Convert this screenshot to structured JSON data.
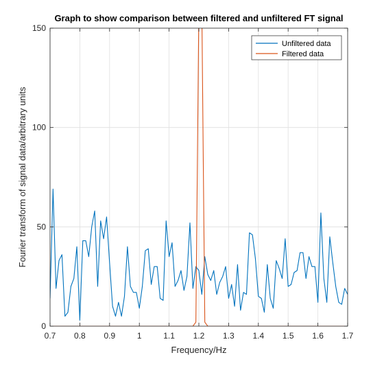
{
  "chart_data": {
    "type": "line",
    "title": "Graph to show comparison between filtered and unfiltered FT signal",
    "xlabel": "Frequency/Hz",
    "ylabel": "Fourier transform of signal data/arbitrary units",
    "xlim": [
      0.7,
      1.7
    ],
    "ylim": [
      0,
      150
    ],
    "xticks": [
      0.7,
      0.8,
      0.9,
      1.0,
      1.1,
      1.2,
      1.3,
      1.4,
      1.5,
      1.6,
      1.7
    ],
    "xtick_labels": [
      "0.7",
      "0.8",
      "0.9",
      "1",
      "1.1",
      "1.2",
      "1.3",
      "1.4",
      "1.5",
      "1.6",
      "1.7"
    ],
    "yticks": [
      0,
      50,
      100,
      150
    ],
    "ytick_labels": [
      "0",
      "50",
      "100",
      "150"
    ],
    "grid": true,
    "legend_position": "top-right",
    "x": [
      0.7,
      0.71,
      0.72,
      0.73,
      0.74,
      0.75,
      0.76,
      0.77,
      0.78,
      0.79,
      0.8,
      0.81,
      0.82,
      0.83,
      0.84,
      0.85,
      0.86,
      0.87,
      0.88,
      0.89,
      0.9,
      0.91,
      0.92,
      0.93,
      0.94,
      0.95,
      0.96,
      0.97,
      0.98,
      0.99,
      1.0,
      1.01,
      1.02,
      1.03,
      1.04,
      1.05,
      1.06,
      1.07,
      1.08,
      1.09,
      1.1,
      1.11,
      1.12,
      1.13,
      1.14,
      1.15,
      1.16,
      1.17,
      1.18,
      1.19,
      1.2,
      1.21,
      1.22,
      1.23,
      1.24,
      1.25,
      1.26,
      1.27,
      1.28,
      1.29,
      1.3,
      1.31,
      1.32,
      1.33,
      1.34,
      1.35,
      1.36,
      1.37,
      1.38,
      1.39,
      1.4,
      1.41,
      1.42,
      1.43,
      1.44,
      1.45,
      1.46,
      1.47,
      1.48,
      1.49,
      1.5,
      1.51,
      1.52,
      1.53,
      1.54,
      1.55,
      1.56,
      1.57,
      1.58,
      1.59,
      1.6,
      1.61,
      1.62,
      1.63,
      1.64,
      1.65,
      1.66,
      1.67,
      1.68,
      1.69,
      1.7
    ],
    "series": [
      {
        "name": "Unfiltered data",
        "color": "#0072BD",
        "values": [
          14,
          69,
          19,
          33,
          36,
          5,
          7,
          20,
          24,
          40,
          3,
          43,
          43,
          35,
          50,
          58,
          20,
          53,
          44,
          55,
          32,
          10,
          5,
          12,
          5,
          15,
          40,
          20,
          17,
          17,
          9,
          20,
          38,
          39,
          21,
          30,
          30,
          14,
          13,
          53,
          35,
          42,
          20,
          23,
          28,
          18,
          25,
          52,
          19,
          30,
          28,
          16,
          35,
          26,
          23,
          28,
          16,
          22,
          25,
          30,
          14,
          21,
          10,
          31,
          8,
          17,
          16,
          47,
          46,
          34,
          15,
          14,
          7,
          31,
          14,
          9,
          33,
          29,
          24,
          44,
          20,
          21,
          27,
          28,
          37,
          37,
          24,
          35,
          30,
          30,
          12,
          57,
          24,
          12,
          45,
          32,
          20,
          12,
          11,
          19,
          16
        ]
      },
      {
        "name": "Filtered data",
        "color": "#D95319",
        "values": [
          0,
          0,
          0,
          0,
          0,
          0,
          0,
          0,
          0,
          0,
          0,
          0,
          0,
          0,
          0,
          0,
          0,
          0,
          0,
          0,
          0,
          0,
          0,
          0,
          0,
          0,
          0,
          0,
          0,
          0,
          0,
          0,
          0,
          0,
          0,
          0,
          0,
          0,
          0,
          0,
          0,
          0,
          0,
          0,
          0,
          0,
          0,
          0,
          0,
          2,
          160,
          160,
          2,
          0,
          0,
          0,
          0,
          0,
          0,
          0,
          0,
          0,
          0,
          0,
          0,
          0,
          0,
          0,
          0,
          0,
          0,
          0,
          0,
          0,
          0,
          0,
          0,
          0,
          0,
          0,
          0,
          0,
          0,
          0,
          0,
          0,
          0,
          0,
          0,
          0,
          0,
          0,
          0,
          0,
          0,
          0,
          0,
          0,
          0,
          0,
          0
        ]
      }
    ]
  }
}
